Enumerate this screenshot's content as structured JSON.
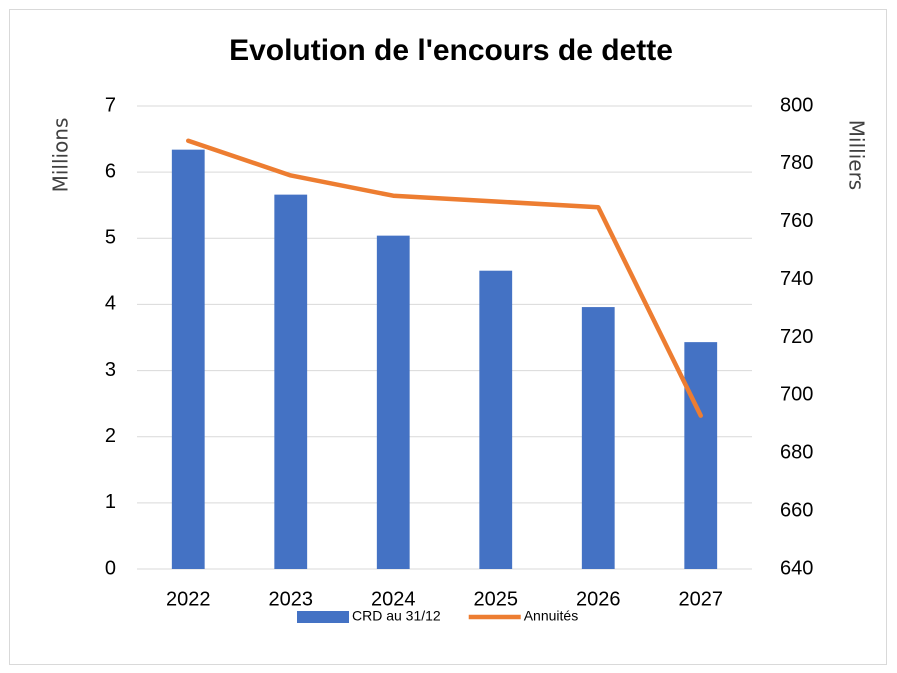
{
  "chart_data": {
    "type": "bar",
    "title": "Evolution de l'encours de dette",
    "categories": [
      "2022",
      "2023",
      "2024",
      "2025",
      "2026",
      "2027"
    ],
    "series": [
      {
        "name": "CRD au 31/12",
        "type": "bar",
        "color": "#4472c4",
        "values": [
          6.34,
          5.66,
          5.04,
          4.51,
          3.96,
          3.43
        ]
      },
      {
        "name": "Annuités",
        "type": "line",
        "axis": "y2",
        "color": "#ed7d31",
        "values": [
          788,
          776,
          769,
          767,
          765,
          693
        ]
      }
    ],
    "y_label": "Millions",
    "y2_label": "Milliers",
    "ylim": [
      0,
      7
    ],
    "yticks": [
      0,
      1,
      2,
      3,
      4,
      5,
      6,
      7
    ],
    "y2lim": [
      640,
      800
    ],
    "y2ticks": [
      640,
      660,
      680,
      700,
      720,
      740,
      760,
      780,
      800
    ],
    "grid": true,
    "legend": "bottom"
  }
}
